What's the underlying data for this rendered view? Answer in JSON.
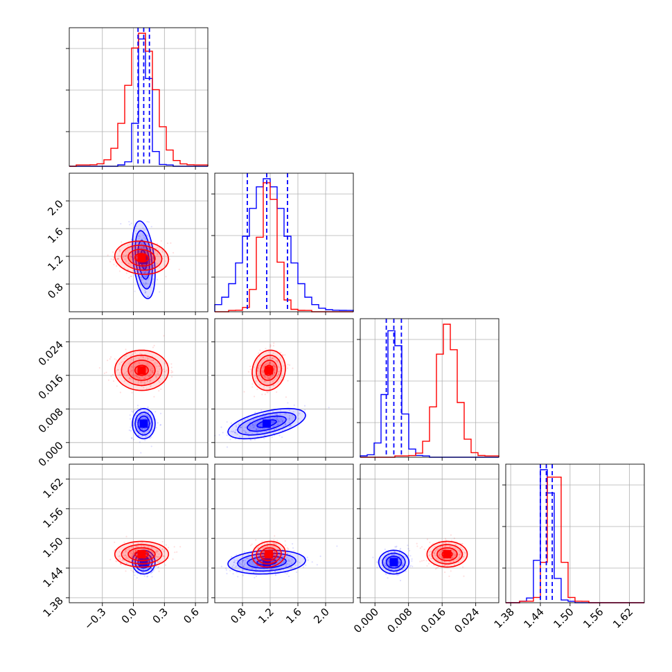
{
  "chart_data": {
    "type": "corner",
    "grid": true,
    "parameters": [
      {
        "ticks": [
          -0.3,
          0.0,
          0.3,
          0.6
        ],
        "tick_labels": [
          "−0.3",
          "0.0",
          "0.3",
          "0.6"
        ],
        "range": [
          -0.62,
          0.72
        ]
      },
      {
        "ticks": [
          0.8,
          1.2,
          1.6,
          2.0
        ],
        "tick_labels": [
          "0.8",
          "1.2",
          "1.6",
          "2.0"
        ],
        "range": [
          0.4,
          2.4
        ]
      },
      {
        "ticks": [
          0.0,
          0.008,
          0.016,
          0.024
        ],
        "tick_labels": [
          "0.000",
          "0.008",
          "0.016",
          "0.024"
        ],
        "range": [
          -0.0035,
          0.0295
        ]
      },
      {
        "ticks": [
          1.38,
          1.44,
          1.5,
          1.56,
          1.62
        ],
        "tick_labels": [
          "1.38",
          "1.44",
          "1.50",
          "1.56",
          "1.62"
        ],
        "range": [
          1.37,
          1.65
        ]
      }
    ],
    "series": [
      {
        "color": "#0000ff",
        "mean": [
          0.1,
          1.15,
          0.0045,
          1.452
        ],
        "std": [
          0.055,
          0.28,
          0.0018,
          0.012
        ],
        "corr": {
          "0-1": -0.35,
          "1-2": 0.55,
          "1-3": 0.15
        }
      },
      {
        "color": "#ff0000",
        "mean": [
          0.08,
          1.18,
          0.0172,
          1.468
        ],
        "std": [
          0.13,
          0.12,
          0.0024,
          0.013
        ],
        "corr": {
          "0-1": -0.1,
          "1-2": 0.1,
          "1-3": 0.1
        }
      }
    ],
    "quantile_lines": {
      "color": "#0000ff",
      "style": "dashed",
      "values": [
        [
          0.045,
          0.1,
          0.155
        ],
        [
          0.87,
          1.15,
          1.45
        ],
        [
          0.0027,
          0.0045,
          0.0063
        ],
        [
          1.44,
          1.452,
          1.464
        ]
      ]
    }
  }
}
